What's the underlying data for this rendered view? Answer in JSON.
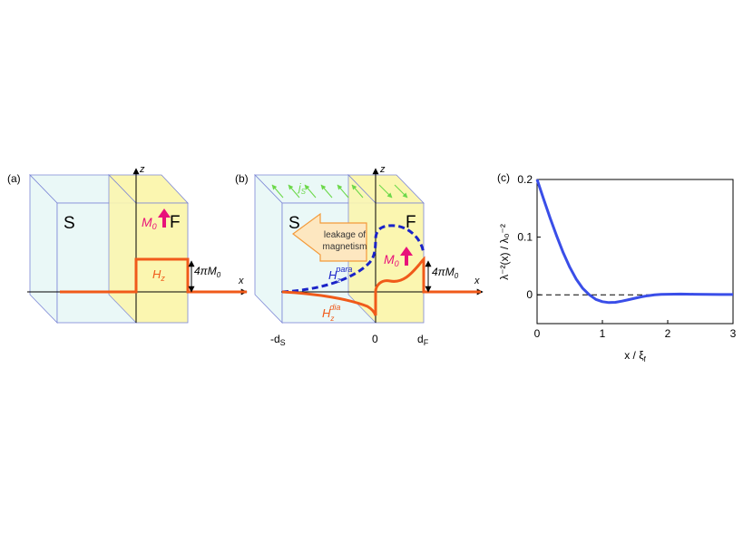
{
  "panel_a": {
    "label": "(a)",
    "axis_z": "z",
    "axis_x": "x",
    "s_label": "S",
    "f_label": "F",
    "m0_label": "M",
    "m0_sub": "0",
    "hz_label": "H",
    "hz_sub": "z",
    "jump_label": "4πM",
    "jump_sub": "0",
    "colors": {
      "field": "#f05a1a",
      "m0": "#e8127a",
      "f_fill": "#fbf6b0",
      "s_fill": "#eaf8f7",
      "box_edge": "#7c86d6"
    }
  },
  "panel_b": {
    "label": "(b)",
    "axis_z": "z",
    "axis_x": "x",
    "s_label": "S",
    "f_label": "F",
    "js_label": "j",
    "js_sub": "S",
    "leak_line1": "leakage of",
    "leak_line2": "magnetism",
    "para_label": "H",
    "para_sub": "z",
    "para_sup": "para",
    "dia_label": "H",
    "dia_sub": "z",
    "dia_sup": "dia",
    "m0_label": "M",
    "m0_sub": "0",
    "jump_label": "4πM",
    "jump_sub": "0",
    "tick_ds": "-d",
    "tick_ds_sub": "S",
    "tick_0": "0",
    "tick_df": "d",
    "tick_df_sub": "F",
    "colors": {
      "para": "#1a23c8",
      "dia": "#f05a1a",
      "js": "#6cd84a",
      "arrow_fill": "#fde7c0",
      "arrow_edge": "#f39a3a"
    }
  },
  "panel_c": {
    "label": "(c)"
  },
  "chart_data": {
    "type": "line",
    "xlabel": "x / ξ",
    "xlabel_sub": "f",
    "ylabel": "λ⁻²(x) / λ₀⁻²",
    "xlim": [
      0,
      3
    ],
    "ylim": [
      -0.05,
      0.2
    ],
    "xticks": [
      "0",
      "1",
      "2",
      "3"
    ],
    "yticks": [
      "0",
      "0.1",
      "0.2"
    ],
    "ytick_values": [
      0,
      0.1,
      0.2
    ],
    "xtick_values": [
      0,
      1,
      2,
      3
    ],
    "reference_line": {
      "y": 0,
      "style": "dashed"
    },
    "series": [
      {
        "color": "#3a4ee8",
        "x": [
          0,
          0.1,
          0.2,
          0.3,
          0.4,
          0.5,
          0.6,
          0.7,
          0.8,
          0.9,
          1.0,
          1.1,
          1.2,
          1.3,
          1.4,
          1.5,
          1.6,
          1.7,
          1.8,
          1.9,
          2.0,
          2.2,
          2.4,
          2.6,
          2.8,
          3.0
        ],
        "y": [
          0.2,
          0.166,
          0.133,
          0.102,
          0.073,
          0.048,
          0.027,
          0.011,
          0.0,
          -0.008,
          -0.012,
          -0.0135,
          -0.013,
          -0.011,
          -0.0085,
          -0.006,
          -0.0035,
          -0.0015,
          -0.0002,
          0.0006,
          0.001,
          0.0012,
          0.001,
          0.0007,
          0.0005,
          0.0004
        ]
      }
    ]
  }
}
